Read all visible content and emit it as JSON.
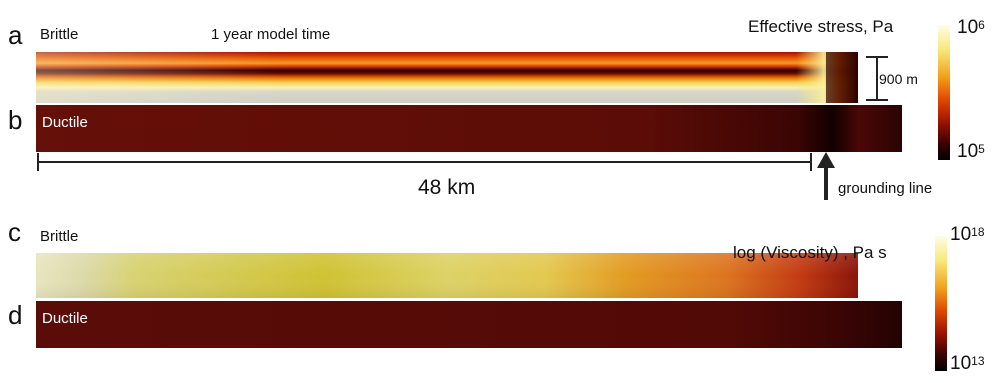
{
  "panels": {
    "a": {
      "letter": "a",
      "label": "Brittle"
    },
    "b": {
      "letter": "b",
      "label": "Ductile"
    },
    "c": {
      "letter": "c",
      "label": "Brittle"
    },
    "d": {
      "letter": "d",
      "label": "Ductile"
    }
  },
  "model_time": "1 year model time",
  "thickness_label": "900 m",
  "length_label": "48 km",
  "grounding_line_label": "grounding line",
  "stress_colorbar": {
    "title": "Effective stress, Pa",
    "max_base": "10",
    "max_exp": "6",
    "min_base": "10",
    "min_exp": "5"
  },
  "viscosity_colorbar": {
    "title": "log (Viscosity) , Pa s",
    "max_base": "10",
    "max_exp": "18",
    "min_base": "10",
    "min_exp": "13"
  },
  "colors": {
    "hot_dark": "#1a0000",
    "hot_red": "#c61800",
    "hot_orange": "#f07a00",
    "hot_yellow": "#f5e66a",
    "hot_white": "#fffbe0",
    "ductile_red": "#5a0c08",
    "ice_grey": "#cfcfc4",
    "olive": "#cdc331"
  }
}
